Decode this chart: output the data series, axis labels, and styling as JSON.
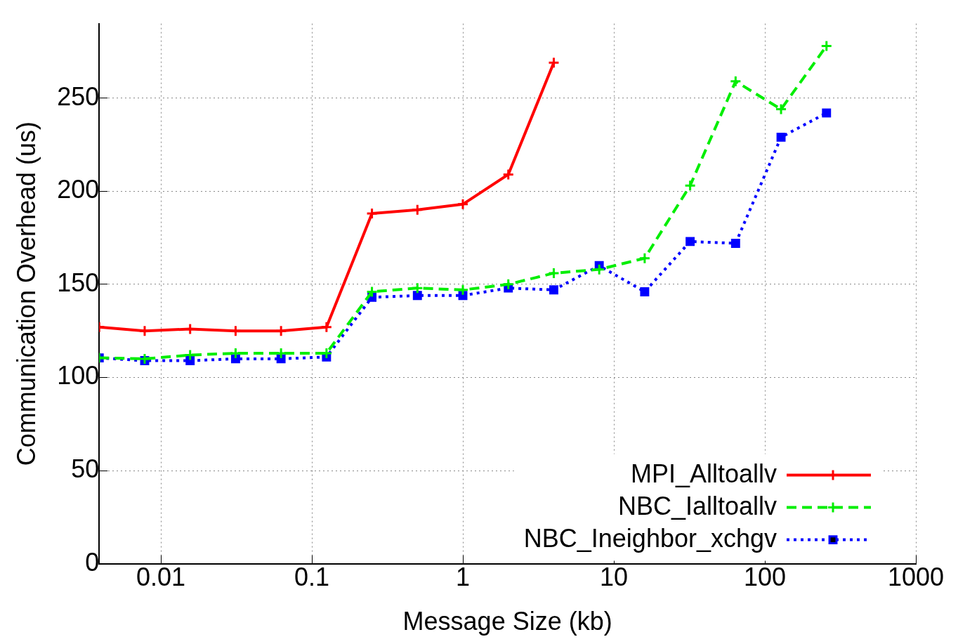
{
  "chart_data": {
    "type": "line",
    "xlabel": "Message Size (kb)",
    "ylabel": "Communication Overhead (us)",
    "x": [
      0.00390625,
      0.0078125,
      0.015625,
      0.03125,
      0.0625,
      0.125,
      0.25,
      0.5,
      1,
      2,
      4,
      8,
      16,
      32,
      64,
      128,
      256
    ],
    "xlim": [
      0.00390625,
      1000
    ],
    "xticks": [
      0.01,
      0.1,
      1,
      10,
      100,
      1000
    ],
    "ylim": [
      0,
      290
    ],
    "yticks": [
      0,
      50,
      100,
      150,
      200,
      250
    ],
    "log": "x",
    "grid": true,
    "legend": "bottom right",
    "series": [
      {
        "name": "MPI_Alltoallv",
        "color": "#ff0000",
        "marker": "cross",
        "line_style": "solid",
        "values": [
          127,
          125,
          126,
          125,
          125,
          127,
          188,
          190,
          193,
          209,
          269,
          null,
          null,
          null,
          null,
          null,
          null
        ]
      },
      {
        "name": "NBC_Ialltoallv",
        "color": "#00ee00",
        "marker": "cross",
        "line_style": "dashed",
        "values": [
          110.5,
          110,
          112,
          113,
          113,
          113,
          146,
          148,
          147,
          150,
          156,
          158,
          164,
          203,
          259,
          244,
          278
        ]
      },
      {
        "name": "NBC_Ineighbor_xchgv",
        "color": "#0000ff",
        "marker": "square",
        "line_style": "dotted",
        "values": [
          110.5,
          109,
          109,
          110,
          110,
          111,
          143,
          144,
          144,
          148,
          147,
          160,
          146,
          173,
          172,
          229,
          242
        ]
      }
    ]
  }
}
